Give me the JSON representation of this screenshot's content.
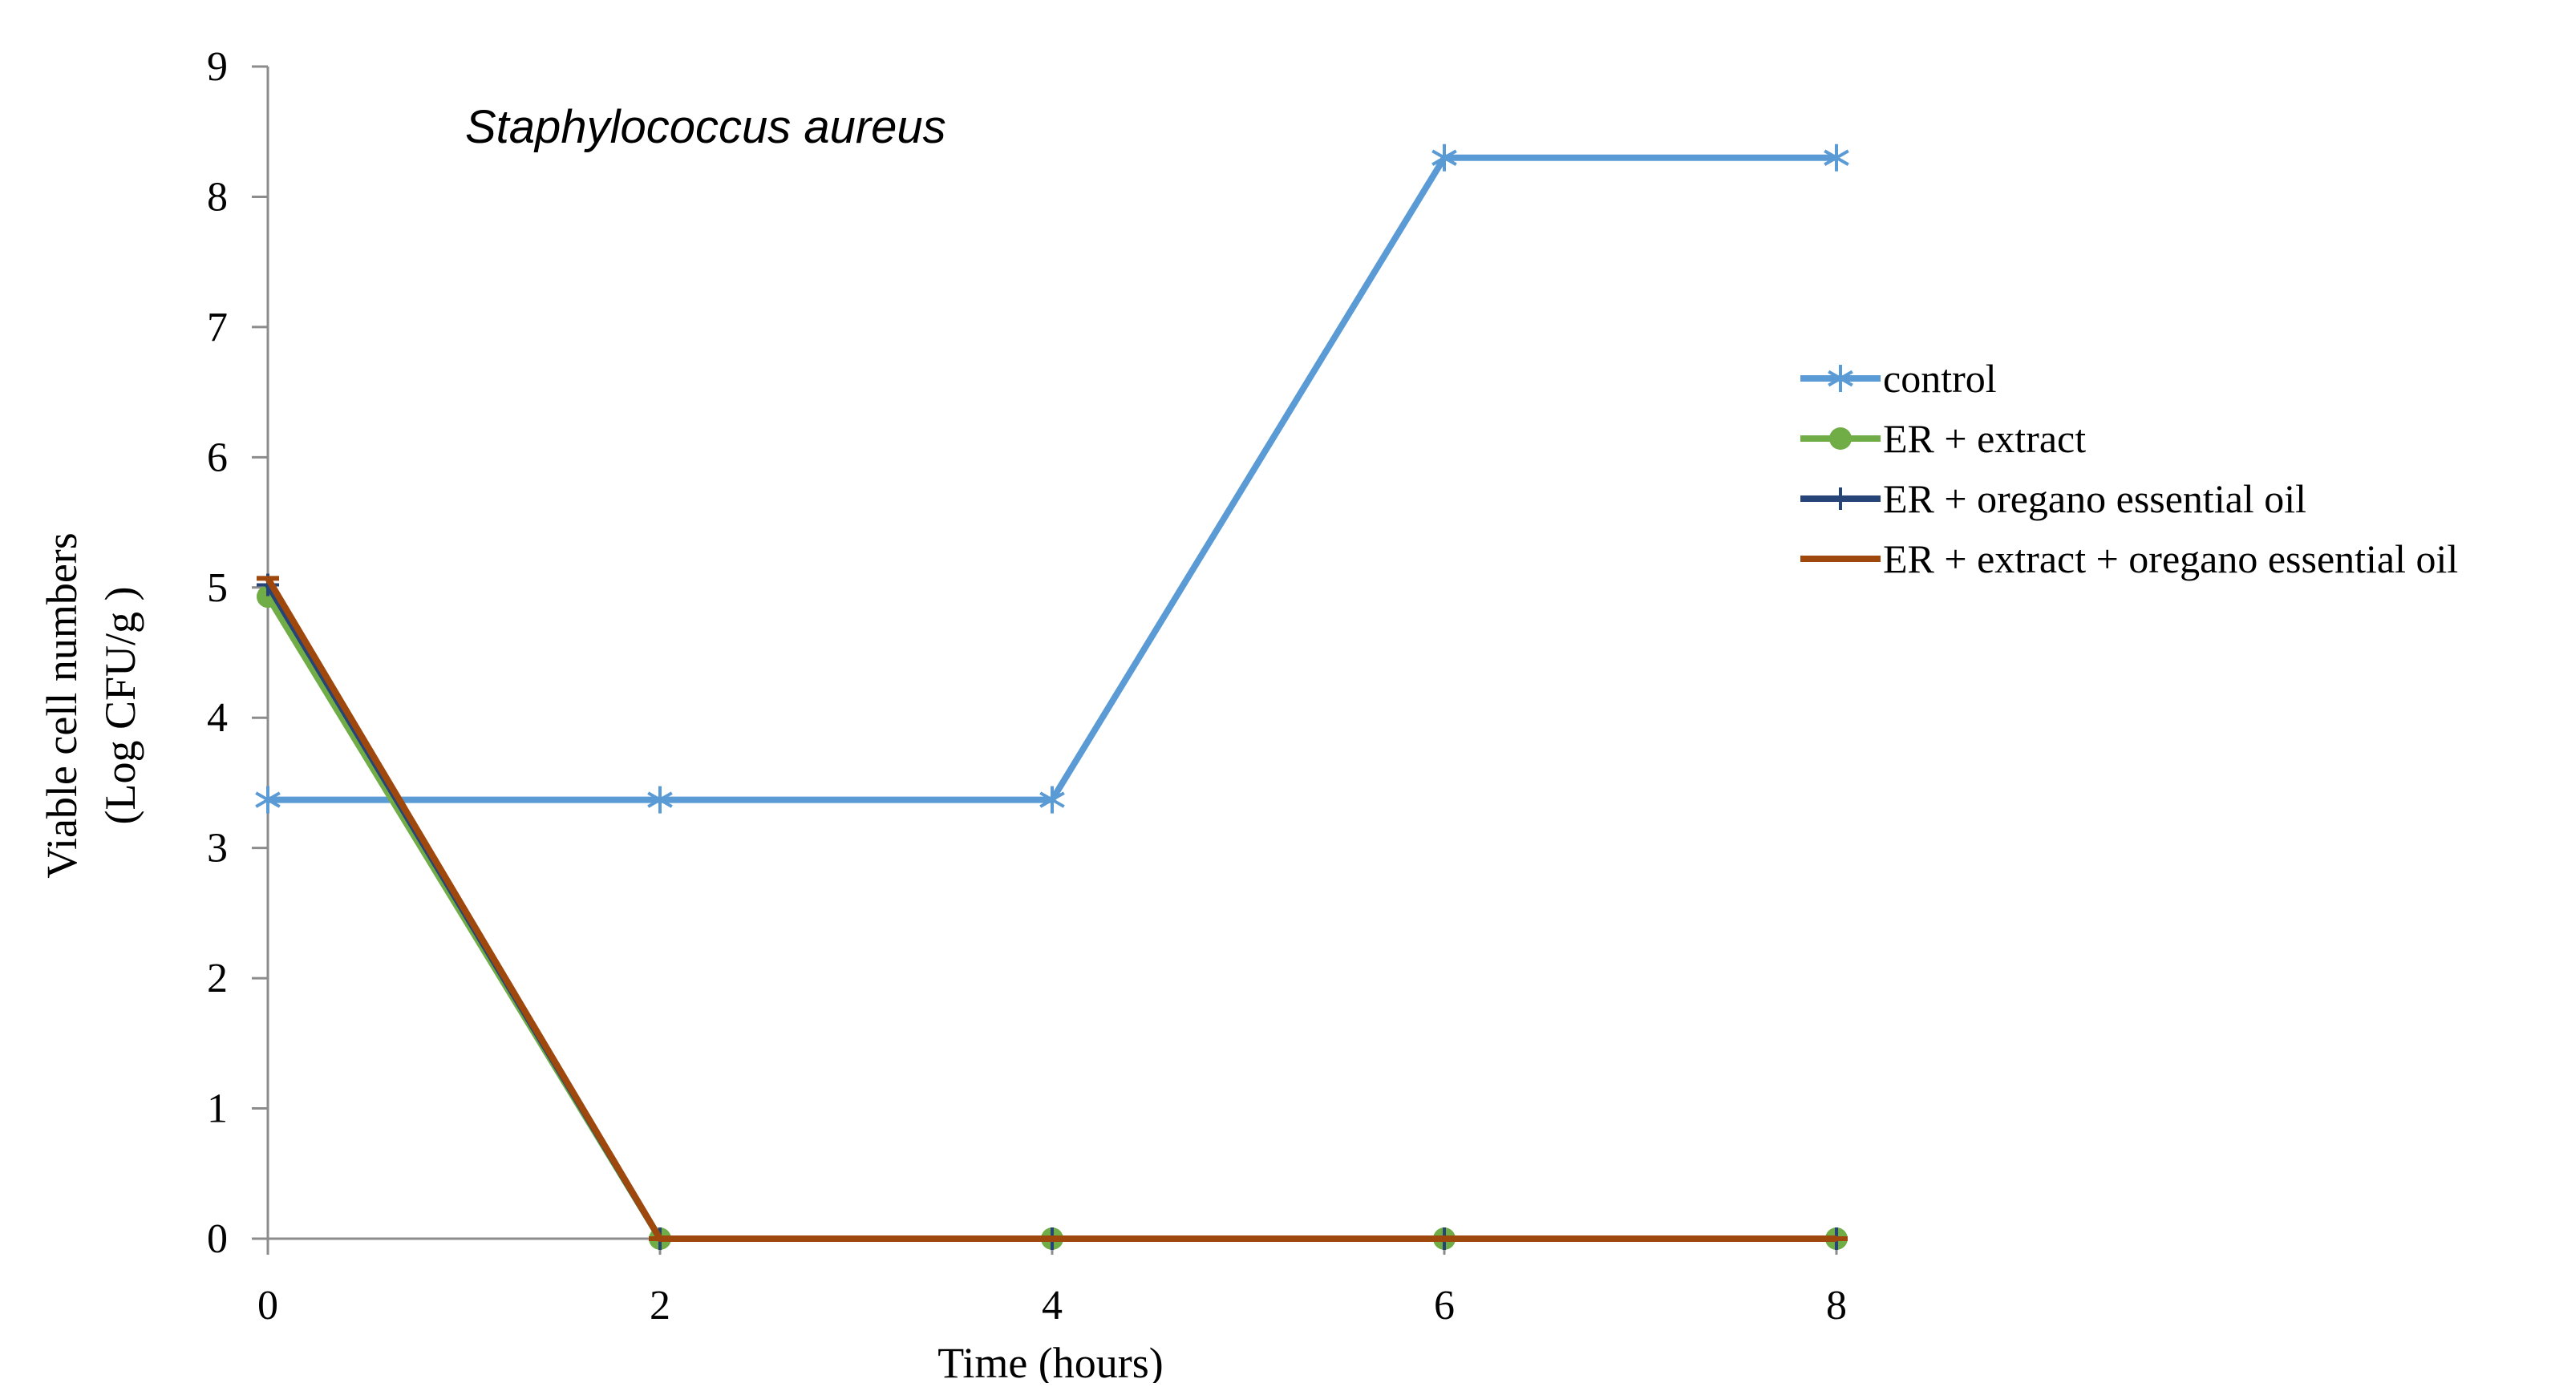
{
  "chart_data": {
    "type": "line",
    "title": "Staphylococcus aureus",
    "xlabel": "Time (hours)",
    "ylabel": "Viable cell numbers",
    "ylabel_line2": "(Log CFU/g )",
    "x": [
      0,
      2,
      4,
      6,
      8
    ],
    "xlim": [
      0,
      8
    ],
    "ylim": [
      0,
      9
    ],
    "x_ticks": [
      "0",
      "2",
      "4",
      "6",
      "8"
    ],
    "y_ticks": [
      "0",
      "1",
      "2",
      "3",
      "4",
      "5",
      "6",
      "7",
      "8",
      "9"
    ],
    "grid": false,
    "legend_position": "right",
    "series": [
      {
        "name": "control",
        "values": [
          3.37,
          3.37,
          3.37,
          8.3,
          8.3
        ],
        "color": "#5b9bd5",
        "marker": "asterisk"
      },
      {
        "name": "ER + extract",
        "values": [
          4.93,
          0,
          0,
          0,
          0
        ],
        "color": "#70ad47",
        "marker": "circle"
      },
      {
        "name": "ER + oregano essential oil",
        "values": [
          5.02,
          0,
          0,
          0,
          0
        ],
        "color": "#264478",
        "marker": "plus"
      },
      {
        "name": "ER + extract + oregano essential oil",
        "values": [
          5.07,
          0,
          0,
          0,
          0
        ],
        "color": "#9e480e",
        "marker": "dash"
      }
    ]
  }
}
